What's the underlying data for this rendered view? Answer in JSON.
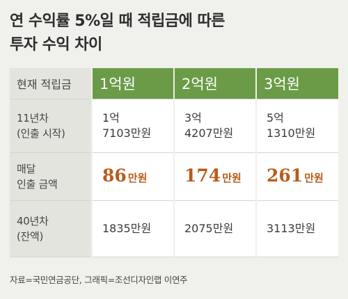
{
  "title": {
    "line1": "연 수익률 5%일 때 적립금에 따른",
    "line2": "투자 수익 차이"
  },
  "table": {
    "header": {
      "label": "현재 적립금",
      "columns": [
        "1억원",
        "2억원",
        "3억원"
      ]
    },
    "row_year11": {
      "label_line1": "11년차",
      "label_line2": "(인출 시작)",
      "cells": [
        {
          "line1": "1억",
          "line2": "7103만원"
        },
        {
          "line1": "3억",
          "line2": "4207만원"
        },
        {
          "line1": "5억",
          "line2": "1310만원"
        }
      ]
    },
    "row_monthly": {
      "label_line1": "매달",
      "label_line2": "인출 금액",
      "cells": [
        {
          "number": "86",
          "unit": "만원"
        },
        {
          "number": "174",
          "unit": "만원"
        },
        {
          "number": "261",
          "unit": "만원"
        }
      ]
    },
    "row_year40": {
      "label_line1": "40년차",
      "label_line2": "(잔액)",
      "cells": [
        "1835만원",
        "2075만원",
        "3113만원"
      ]
    }
  },
  "source": "자료=국민연금공단, 그래픽=조선디자인랩 이연주",
  "colors": {
    "background": "#f0f0ec",
    "header_green": "#6b9b47",
    "label_gray": "#e4e4de",
    "accent_orange": "#b85c1c"
  }
}
